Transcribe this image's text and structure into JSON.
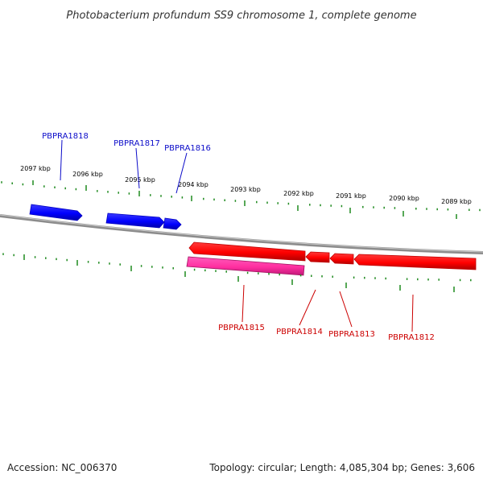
{
  "title": "Photobacterium profundum SS9 chromosome 1, complete genome",
  "footer": {
    "accession": "Accession: NC_006370",
    "summary": "Topology: circular; Length: 4,085,304 bp; Genes: 3,606"
  },
  "scale_labels": [
    "2097 kbp",
    "2096 kbp",
    "2095 kbp",
    "2094 kbp",
    "2093 kbp",
    "2092 kbp",
    "2091 kbp",
    "2090 kbp",
    "2089 kbp"
  ],
  "genes_forward": [
    {
      "name": "PBPRA1818",
      "color": "#0b0bc9"
    },
    {
      "name": "PBPRA1817",
      "color": "#0b0bc9"
    },
    {
      "name": "PBPRA1816",
      "color": "#0b0bc9"
    }
  ],
  "genes_reverse": [
    {
      "name": "PBPRA1815",
      "color": "#cc0000"
    },
    {
      "name": "PBPRA1814",
      "color": "#cc0000"
    },
    {
      "name": "PBPRA1813",
      "color": "#cc0000"
    },
    {
      "name": "PBPRA1812",
      "color": "#cc0000"
    }
  ],
  "colors": {
    "forward_gene": "#0000ff",
    "reverse_gene": "#ff0000",
    "rna_gene": "#ff33aa",
    "ticks": "#1f8a1f",
    "backbone": "#8c8c8c"
  }
}
